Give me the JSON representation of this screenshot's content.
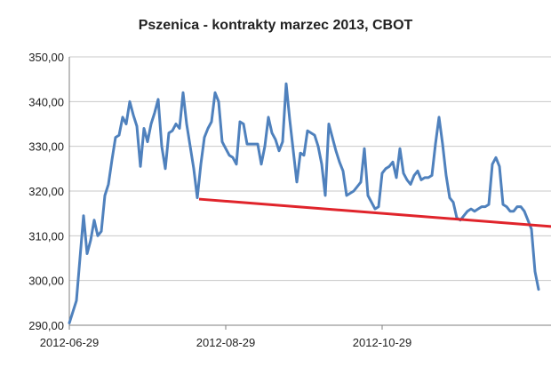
{
  "chart_data": {
    "type": "line",
    "title": "Pszenica - kontrakty marzec 2013, CBOT",
    "ylim": [
      290,
      350
    ],
    "yticks": [
      "290,00",
      "300,00",
      "310,00",
      "320,00",
      "330,00",
      "340,00",
      "350,00"
    ],
    "xticks": [
      {
        "label": "2012-06-29",
        "index": 0
      },
      {
        "label": "2012-08-29",
        "index": 44
      },
      {
        "label": "2012-10-29",
        "index": 88
      }
    ],
    "grid": true,
    "legend": "none",
    "colors": {
      "price": "#4f81bd",
      "trend": "#e0242b",
      "grid": "#c8c8c8",
      "axis": "#7f7f7f"
    },
    "series": [
      {
        "role": "price",
        "values": [
          290.5,
          293,
          295.5,
          305,
          314.5,
          306,
          309,
          313.5,
          310,
          311,
          319,
          321.5,
          327,
          332,
          332.5,
          336.5,
          335,
          340,
          337,
          334.5,
          325.5,
          334,
          331,
          335,
          337.5,
          340.5,
          330,
          325,
          333,
          333.5,
          335,
          334,
          342,
          335,
          330,
          325,
          318.5,
          326,
          332,
          334,
          335.5,
          342,
          340,
          331,
          329.5,
          328,
          327.5,
          326,
          335.5,
          335,
          330.5,
          330.5,
          330.5,
          330.5,
          326,
          330,
          336.5,
          333,
          331.5,
          329,
          331,
          344,
          336,
          329,
          322,
          328.5,
          328,
          333.5,
          333,
          332.5,
          330,
          326,
          319,
          335,
          332,
          329,
          326.5,
          324.5,
          319,
          319.5,
          320,
          321,
          322,
          329.5,
          319,
          317.5,
          316,
          316.5,
          324,
          325,
          325.5,
          326.5,
          323,
          329.5,
          324,
          322.5,
          321.5,
          323.5,
          324.5,
          322.5,
          323,
          323,
          323.5,
          330.5,
          336.5,
          330.5,
          323.5,
          318.5,
          317.5,
          314,
          313.5,
          314.5,
          315.5,
          316,
          315.5,
          316,
          316.5,
          316.5,
          317,
          326,
          327.5,
          325.5,
          317,
          316.5,
          315.5,
          315.5,
          316.5,
          316.5,
          315.5,
          313.5,
          311.5,
          302,
          298
        ]
      },
      {
        "role": "trend",
        "x": [
          36.5,
          140
        ],
        "values": [
          318.2,
          311.8
        ]
      }
    ]
  }
}
